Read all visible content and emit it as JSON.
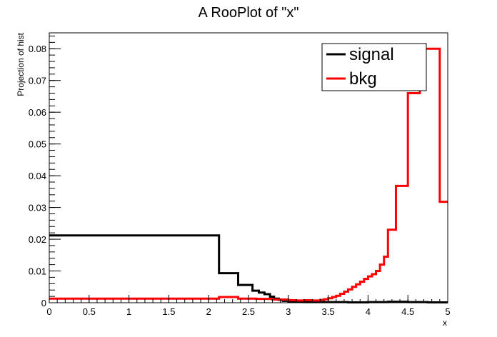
{
  "chart_data": {
    "type": "line",
    "title": "A RooPlot of \"x\"",
    "xlabel": "x",
    "ylabel": "Projection of hist",
    "xlim": [
      0,
      5
    ],
    "ylim": [
      0,
      0.085
    ],
    "xticks": [
      0,
      0.5,
      1,
      1.5,
      2,
      2.5,
      3,
      3.5,
      4,
      4.5,
      5
    ],
    "xtick_labels": [
      "0",
      "0.5",
      "1",
      "1.5",
      "2",
      "2.5",
      "3",
      "3.5",
      "4",
      "4.5",
      "5"
    ],
    "yticks": [
      0,
      0.01,
      0.02,
      0.03,
      0.04,
      0.05,
      0.06,
      0.07,
      0.08
    ],
    "ytick_labels": [
      "0",
      "0.01",
      "0.02",
      "0.03",
      "0.04",
      "0.05",
      "0.06",
      "0.07",
      "0.08"
    ],
    "grid": false,
    "legend": {
      "position": "top-right"
    },
    "series": [
      {
        "name": "signal",
        "color": "#000000",
        "edges": [
          0,
          2.13,
          2.37,
          2.55,
          2.63,
          2.7,
          2.77,
          2.82,
          2.88,
          2.93,
          3.0,
          3.1,
          3.2,
          3.35,
          3.5,
          3.75,
          4.0,
          4.25,
          4.5,
          4.75,
          5.0
        ],
        "values": [
          0.0212,
          0.0093,
          0.0056,
          0.0038,
          0.0032,
          0.0027,
          0.0019,
          0.0013,
          0.0009,
          0.0006,
          0.0004,
          0.0003,
          0.0002,
          0.0002,
          0.0002,
          0.0001,
          0.0002,
          0.0003,
          0.0002,
          0.0001
        ]
      },
      {
        "name": "bkg",
        "color": "#ff0000",
        "edges": [
          0,
          2.13,
          2.37,
          2.6,
          2.8,
          3.0,
          3.1,
          3.2,
          3.3,
          3.4,
          3.45,
          3.5,
          3.55,
          3.6,
          3.65,
          3.7,
          3.75,
          3.8,
          3.85,
          3.9,
          3.95,
          4.0,
          4.05,
          4.1,
          4.15,
          4.2,
          4.25,
          4.35,
          4.5,
          4.65,
          4.78,
          4.9,
          5.0
        ],
        "values": [
          0.0013,
          0.0018,
          0.0013,
          0.0012,
          0.001,
          0.0008,
          0.0007,
          0.0008,
          0.0007,
          0.0009,
          0.0011,
          0.0014,
          0.0018,
          0.0022,
          0.0028,
          0.0035,
          0.0042,
          0.005,
          0.0058,
          0.0066,
          0.0075,
          0.0083,
          0.009,
          0.01,
          0.012,
          0.0145,
          0.023,
          0.0368,
          0.066,
          0.08,
          0.08,
          0.0318
        ]
      }
    ]
  }
}
